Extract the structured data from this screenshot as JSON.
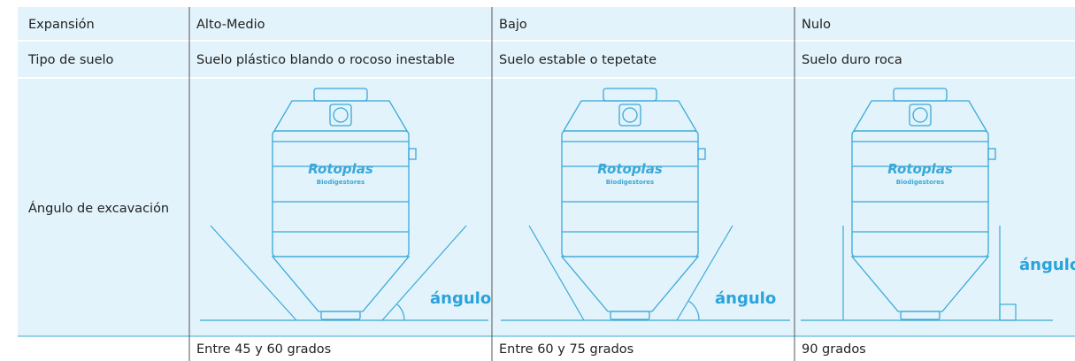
{
  "table": {
    "header": [
      "Expansión",
      "Alto-Medio",
      "Bajo",
      "Nulo"
    ],
    "rows": [
      [
        "Tipo de suelo",
        "Suelo plástico blando o rocoso inestable",
        "Suelo estable o tepetate",
        "Suelo duro roca"
      ],
      [
        "Ángulo de excavación"
      ]
    ],
    "footer": [
      "Entre 45 y 60 grados",
      "Entre 60 y 75 grados",
      "90 grados"
    ]
  },
  "illustration": {
    "brand": "Rotoplas",
    "product": "Biodigestores",
    "angle_label": "ángulo"
  }
}
